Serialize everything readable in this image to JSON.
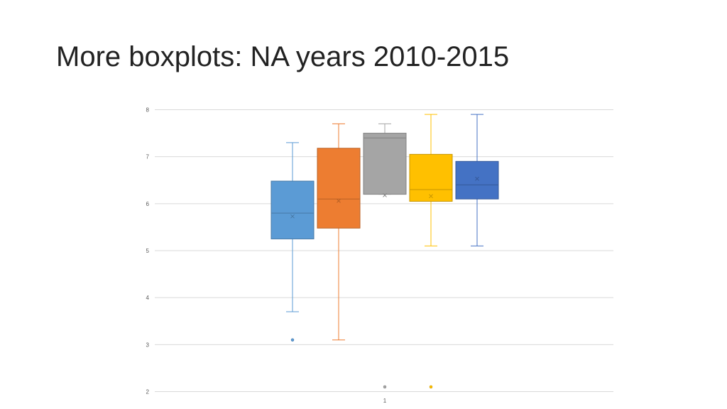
{
  "slide": {
    "title": "More boxplots: NA years 2010-2015"
  },
  "chart_data": {
    "type": "boxplot",
    "categories": [
      "1"
    ],
    "ylim": [
      2,
      8
    ],
    "yticks": [
      2,
      3,
      4,
      5,
      6,
      7,
      8
    ],
    "grid": true,
    "series": [
      {
        "color": "#5b9bd5",
        "min": 3.7,
        "q1": 5.25,
        "median": 5.8,
        "q3": 6.48,
        "max": 7.3,
        "mean": 5.73,
        "outliers": [
          3.1
        ]
      },
      {
        "color": "#ed7d31",
        "min": 3.1,
        "q1": 5.48,
        "median": 6.1,
        "q3": 7.18,
        "max": 7.7,
        "mean": 6.06,
        "outliers": []
      },
      {
        "color": "#a5a5a5",
        "min": 6.2,
        "q1": 6.2,
        "median": 7.4,
        "q3": 7.5,
        "max": 7.7,
        "mean": 6.18,
        "outliers": [
          2.1
        ]
      },
      {
        "color": "#ffc000",
        "min": 5.1,
        "q1": 6.05,
        "median": 6.3,
        "q3": 7.05,
        "max": 7.9,
        "mean": 6.16,
        "outliers": [
          2.1
        ]
      },
      {
        "color": "#4472c4",
        "min": 5.1,
        "q1": 6.1,
        "median": 6.4,
        "q3": 6.9,
        "max": 7.9,
        "mean": 6.53,
        "outliers": []
      }
    ]
  }
}
